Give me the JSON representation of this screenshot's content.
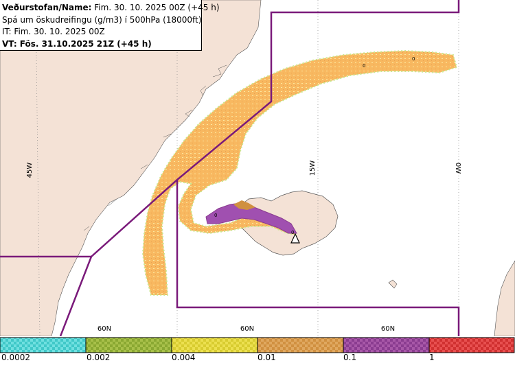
{
  "header": {
    "line1_label": "Veðurstofan/Name:",
    "line1_value": "Fim. 30. 10. 2025 00Z (+45 h)",
    "line2": "Spá um öskudreifingu (g/m3) í 500hPa (18000ft)",
    "line3": "IT: Fim. 30. 10. 2025 00Z",
    "line4": "VT: Fös. 31.10.2025 21Z (+45 h)"
  },
  "graticule": {
    "lon_labels": [
      "45W",
      "15W",
      "0W"
    ],
    "lat_labels": [
      "60N",
      "60N",
      "60N"
    ]
  },
  "contour_labels": [
    "0",
    "0",
    "0",
    "0"
  ],
  "legend": {
    "labels": [
      "0.0002",
      "0.002",
      "0.004",
      "0.01",
      "0.1",
      "1"
    ],
    "colors": [
      "#40c8c8",
      "#8aa832",
      "#d8cc30",
      "#d09040",
      "#8a3c90",
      "#d03030"
    ]
  },
  "colors": {
    "land": "#f4e2d6",
    "ash_low": "#f8b860",
    "ash_high": "#a050b0",
    "boundary": "#7a1a7a"
  }
}
